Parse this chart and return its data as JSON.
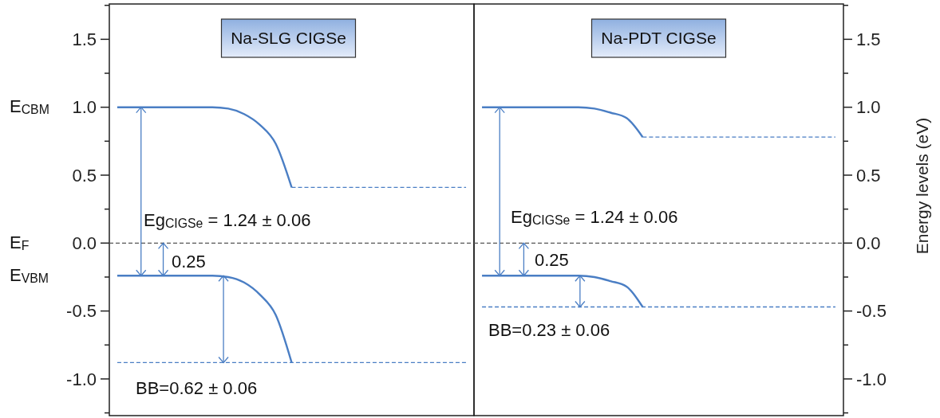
{
  "chart_data": [
    {
      "type": "line",
      "title": "Na-SLG CIGSe",
      "categories": [
        null,
        null,
        null,
        null,
        null,
        null,
        null,
        null,
        null,
        null,
        null,
        null,
        null,
        null,
        null,
        null,
        null,
        null,
        null,
        null,
        null,
        null,
        null
      ],
      "series": [
        {
          "color": "#4a7ec4",
          "line_style": "solid",
          "values": [
            1,
            1,
            1,
            1,
            1,
            1,
            1,
            0.99,
            0.95,
            0.87,
            0.73,
            0.41,
            null,
            null,
            null,
            null,
            null,
            null,
            null,
            null,
            null,
            null,
            null
          ]
        },
        {
          "color": "#4a7ec4",
          "line_style": "dashed",
          "values": [
            null,
            null,
            null,
            null,
            null,
            null,
            null,
            null,
            null,
            null,
            null,
            0.41,
            0.41,
            0.41,
            0.41,
            0.41,
            0.41,
            0.41,
            0.41,
            0.41,
            0.41,
            0.41,
            0.41
          ]
        },
        {
          "color": "#4a7ec4",
          "line_style": "solid",
          "values": [
            -0.24,
            -0.24,
            -0.24,
            -0.24,
            -0.24,
            -0.24,
            -0.24,
            -0.25,
            -0.29,
            -0.38,
            -0.53,
            -0.88,
            null,
            null,
            null,
            null,
            null,
            null,
            null,
            null,
            null,
            null,
            null
          ]
        },
        {
          "color": "#4a7ec4",
          "line_style": "dashed",
          "values": [
            -0.88,
            -0.88,
            -0.88,
            -0.88,
            -0.88,
            -0.88,
            -0.88,
            -0.88,
            -0.88,
            -0.88,
            -0.88,
            -0.88,
            -0.88,
            -0.88,
            -0.88,
            -0.88,
            -0.88,
            -0.88,
            -0.88,
            -0.88,
            -0.88,
            -0.88,
            -0.88
          ]
        }
      ],
      "ylim": [
        -1.27,
        1.76
      ],
      "yticks": [
        {
          "value": -1.25,
          "label": null
        },
        {
          "value": -1,
          "label": "-1.0"
        },
        {
          "value": -0.75,
          "label": null
        },
        {
          "value": -0.5,
          "label": "-0.5"
        },
        {
          "value": -0.25,
          "label": null
        },
        {
          "value": 0,
          "label": "0.0"
        },
        {
          "value": 0.25,
          "label": null
        },
        {
          "value": 0.5,
          "label": "0.5"
        },
        {
          "value": 0.75,
          "label": null
        },
        {
          "value": 1,
          "label": "1.0"
        },
        {
          "value": 1.25,
          "label": null
        },
        {
          "value": 1.5,
          "label": "1.5"
        },
        {
          "value": 1.75,
          "label": null
        }
      ],
      "tick_labels": "y",
      "ref_lines": [
        {
          "axis": "y",
          "value": 0,
          "color": "#555555",
          "line_style": "dashed"
        }
      ],
      "annotations": [
        "E$_{CBM}$",
        "E$_{F}$",
        "E$_{VBM}$",
        "Eg$_{CIGSe}$ = 1.24 ± 0.06",
        "0.25",
        "BB=0.62 ± 0.06"
      ]
    },
    {
      "type": "line",
      "title": "Na-PDT CIGSe",
      "ylabel": "Energy levels (eV)",
      "categories": [
        null,
        null,
        null,
        null,
        null,
        null,
        null,
        null,
        null,
        null,
        null,
        null,
        null,
        null,
        null,
        null,
        null,
        null,
        null,
        null,
        null,
        null,
        null
      ],
      "series": [
        {
          "color": "#4a7ec4",
          "line_style": "solid",
          "values": [
            1,
            1,
            1,
            1,
            1,
            1,
            1,
            0.99,
            0.96,
            0.92,
            0.78,
            null,
            null,
            null,
            null,
            null,
            null,
            null,
            null,
            null,
            null,
            null,
            null
          ]
        },
        {
          "color": "#4a7ec4",
          "line_style": "dashed",
          "values": [
            null,
            null,
            null,
            null,
            null,
            null,
            null,
            null,
            null,
            null,
            0.78,
            0.78,
            0.78,
            0.78,
            0.78,
            0.78,
            0.78,
            0.78,
            0.78,
            0.78,
            0.78,
            0.78,
            0.78
          ]
        },
        {
          "color": "#4a7ec4",
          "line_style": "solid",
          "values": [
            -0.24,
            -0.24,
            -0.24,
            -0.24,
            -0.24,
            -0.24,
            -0.24,
            -0.25,
            -0.28,
            -0.32,
            -0.47,
            null,
            null,
            null,
            null,
            null,
            null,
            null,
            null,
            null,
            null,
            null,
            null
          ]
        },
        {
          "color": "#4a7ec4",
          "line_style": "dashed",
          "values": [
            -0.47,
            -0.47,
            -0.47,
            -0.47,
            -0.47,
            -0.47,
            -0.47,
            -0.47,
            -0.47,
            -0.47,
            -0.47,
            -0.47,
            -0.47,
            -0.47,
            -0.47,
            -0.47,
            -0.47,
            -0.47,
            -0.47,
            -0.47,
            -0.47,
            -0.47,
            -0.47
          ]
        }
      ],
      "ylim": [
        -1.27,
        1.76
      ],
      "yticks": [
        {
          "value": -1.25,
          "label": null
        },
        {
          "value": -1,
          "label": "-1.0"
        },
        {
          "value": -0.75,
          "label": null
        },
        {
          "value": -0.5,
          "label": "-0.5"
        },
        {
          "value": -0.25,
          "label": null
        },
        {
          "value": 0,
          "label": "0.0"
        },
        {
          "value": 0.25,
          "label": null
        },
        {
          "value": 0.5,
          "label": "0.5"
        },
        {
          "value": 0.75,
          "label": null
        },
        {
          "value": 1,
          "label": "1.0"
        },
        {
          "value": 1.25,
          "label": null
        },
        {
          "value": 1.5,
          "label": "1.5"
        },
        {
          "value": 1.75,
          "label": null
        }
      ],
      "tick_labels": "y",
      "ref_lines": [
        {
          "axis": "y",
          "value": 0,
          "color": "#555555",
          "line_style": "dashed"
        }
      ],
      "annotations": [
        "Eg$_{CIGSe}$ = 1.24 ± 0.06",
        "0.25",
        "BB=0.23 ± 0.06"
      ]
    }
  ]
}
